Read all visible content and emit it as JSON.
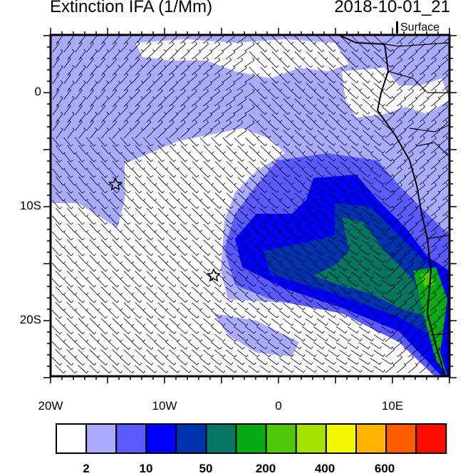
{
  "title": "Extinction IFA (1/Mm)",
  "datetime": "2018-10-01_21",
  "level": "Surface",
  "map": {
    "lon_range": [
      "20W",
      "15E"
    ],
    "lat_range": [
      "5N",
      "25S"
    ],
    "lat_labels": [
      "0",
      "10S",
      "20S"
    ],
    "lon_labels": [
      "20W",
      "10W",
      "0",
      "10E"
    ],
    "overlay": "wind barbs",
    "markers": [
      {
        "type": "star",
        "lon": -14.4,
        "lat": -8.0
      },
      {
        "type": "star",
        "lon": -5.7,
        "lat": -16.0
      }
    ]
  },
  "colorbar": {
    "colors": [
      "#fefefe",
      "#aaaaff",
      "#5a5aff",
      "#0000ff",
      "#0033b0",
      "#067562",
      "#08ab14",
      "#50c80a",
      "#a6e200",
      "#f4f800",
      "#ffb400",
      "#ff5e00",
      "#ff0c00"
    ],
    "labels": [
      "2",
      "10",
      "50",
      "200",
      "400",
      "600"
    ]
  }
}
